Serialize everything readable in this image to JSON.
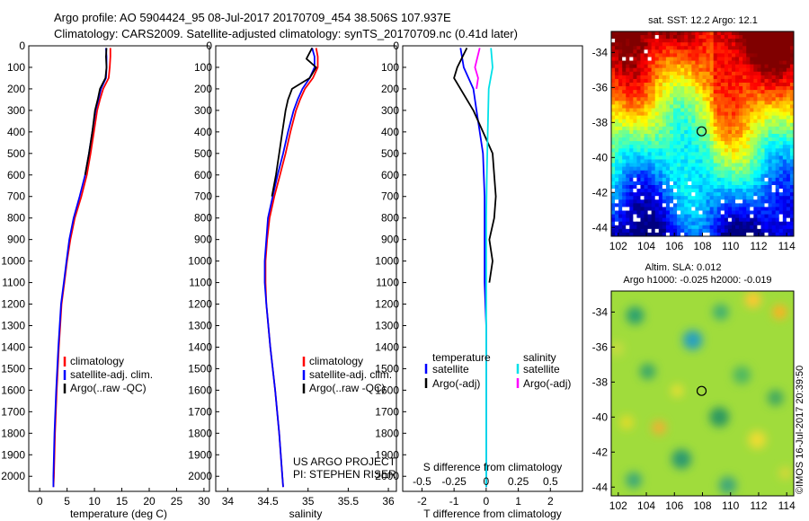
{
  "header": {
    "title_line1": "Argo profile: AO 5904424_95 08-Jul-2017 20170709_454 38.506S 107.937E",
    "title_line2": "Climatology: CARS2009. Satellite-adjusted climatology: synTS_20170709.nc (0.41d later)"
  },
  "side_label": "©IMOS 16-Jul-2017 20:39:50",
  "colors": {
    "climatology": "#ff0000",
    "satellite_adj": "#0000ff",
    "argo": "#000000",
    "sal_satellite": "#00e0e8",
    "sal_argo": "#ff00ff"
  },
  "chart_data": [
    {
      "type": "line",
      "panel": "temperature",
      "xlabel": "temperature (deg C)",
      "ylabel": "",
      "xlim": [
        -2,
        31
      ],
      "ylim": [
        2070,
        0
      ],
      "x_ticks": [
        0,
        5,
        10,
        15,
        20,
        25,
        30
      ],
      "y_ticks": [
        0,
        100,
        200,
        300,
        400,
        500,
        600,
        700,
        800,
        900,
        1000,
        1100,
        1200,
        1300,
        1400,
        1500,
        1600,
        1700,
        1800,
        1900,
        2000
      ],
      "legend": [
        "climatology",
        "satellite-adj. clim.",
        "Argo(..raw -QC)"
      ],
      "series": [
        {
          "name": "climatology",
          "color": "#ff0000",
          "x": [
            12.9,
            12.9,
            12.8,
            12.6,
            11.6,
            11.0,
            10.5,
            9.9,
            9.3,
            8.6,
            7.6,
            6.4,
            5.6,
            5.0,
            4.5,
            4.0,
            3.5,
            3.1,
            2.8,
            2.6,
            2.5
          ],
          "y": [
            10,
            50,
            100,
            150,
            200,
            250,
            300,
            400,
            500,
            600,
            700,
            800,
            900,
            1000,
            1100,
            1200,
            1400,
            1600,
            1800,
            2000,
            2050
          ]
        },
        {
          "name": "satellite-adj. clim.",
          "color": "#0000ff",
          "x": [
            12.1,
            12.2,
            12.2,
            12.1,
            11.2,
            10.7,
            10.2,
            9.6,
            9.0,
            8.3,
            7.3,
            6.2,
            5.4,
            4.9,
            4.4,
            3.9,
            3.4,
            3.0,
            2.7,
            2.5,
            2.5
          ],
          "y": [
            10,
            50,
            100,
            150,
            200,
            250,
            300,
            400,
            500,
            600,
            700,
            800,
            900,
            1000,
            1100,
            1200,
            1400,
            1600,
            1800,
            2000,
            2050
          ]
        },
        {
          "name": "Argo(..raw -QC)",
          "color": "#000000",
          "x": [
            12.2,
            12.1,
            12.2,
            12.0,
            11.0,
            10.6,
            10.1,
            9.6,
            9.0,
            8.3
          ],
          "y": [
            10,
            50,
            100,
            150,
            200,
            250,
            300,
            400,
            500,
            600
          ]
        }
      ]
    },
    {
      "type": "line",
      "panel": "salinity",
      "xlabel": "salinity",
      "ylabel": "",
      "xlim": [
        33.85,
        36.1
      ],
      "ylim": [
        2070,
        0
      ],
      "x_ticks": [
        34,
        34.5,
        35,
        35.5,
        36
      ],
      "legend": [
        "climatology",
        "satellite-adj. clim.",
        "Argo(..raw -QC)"
      ],
      "annotation": [
        "US ARGO PROJECT",
        "PI: STEPHEN RISER"
      ],
      "series": [
        {
          "name": "climatology",
          "color": "#ff0000",
          "x": [
            35.1,
            35.12,
            35.12,
            35.06,
            34.96,
            34.9,
            34.85,
            34.78,
            34.72,
            34.65,
            34.58,
            34.52,
            34.49,
            34.47,
            34.47,
            34.48,
            34.53,
            34.59,
            34.64,
            34.68,
            34.69
          ],
          "y": [
            10,
            50,
            100,
            150,
            200,
            250,
            300,
            400,
            500,
            600,
            700,
            800,
            900,
            1000,
            1100,
            1200,
            1400,
            1600,
            1800,
            2000,
            2050
          ]
        },
        {
          "name": "satellite-adj. clim.",
          "color": "#0000ff",
          "x": [
            35.05,
            35.08,
            35.08,
            35.02,
            34.93,
            34.87,
            34.82,
            34.75,
            34.69,
            34.62,
            34.56,
            34.5,
            34.48,
            34.46,
            34.46,
            34.48,
            34.53,
            34.59,
            34.64,
            34.68,
            34.69
          ],
          "y": [
            10,
            50,
            100,
            150,
            200,
            250,
            300,
            400,
            500,
            600,
            700,
            800,
            900,
            1000,
            1100,
            1200,
            1400,
            1600,
            1800,
            2000,
            2050
          ]
        },
        {
          "name": "Argo(..raw -QC)",
          "color": "#000000",
          "x": [
            35.05,
            34.98,
            35.1,
            35.02,
            34.8,
            34.75,
            34.72,
            34.68,
            34.64,
            34.6,
            34.55
          ],
          "y": [
            10,
            60,
            100,
            150,
            200,
            250,
            300,
            400,
            500,
            600,
            700
          ]
        }
      ]
    },
    {
      "type": "line",
      "panel": "difference",
      "xlabel": "T difference from climatology",
      "top_xlabel": "S difference from climatology",
      "ylabel": "",
      "xlim": [
        -2.6,
        3
      ],
      "ylim": [
        2070,
        0
      ],
      "x_ticks": [
        -2,
        -1,
        0,
        1,
        2
      ],
      "top_x_ticks": [
        "-0.5",
        "-0.25",
        "0",
        "0.25",
        "0.5"
      ],
      "legend_temperature_title": "temperature",
      "legend_salinity_title": "salinity",
      "legend_temperature": [
        "satellite",
        "Argo(-adj)"
      ],
      "legend_salinity": [
        "satellite",
        "Argo(-adj)"
      ],
      "series": [
        {
          "name": "temperature satellite",
          "color": "#0000ff",
          "x": [
            -0.8,
            -0.7,
            -0.4,
            -0.3,
            -0.2,
            -0.1,
            -0.05,
            -0.05,
            -0.05,
            0,
            0,
            0,
            0
          ],
          "y": [
            10,
            100,
            200,
            300,
            400,
            500,
            700,
            900,
            1100,
            1300,
            1500,
            1800,
            2050
          ]
        },
        {
          "name": "temperature Argo(-adj)",
          "color": "#000000",
          "x": [
            -0.6,
            -0.9,
            -1.0,
            -0.4,
            -0.1,
            0.2,
            0.3,
            0.25,
            0.1,
            0.2,
            0.1
          ],
          "y": [
            10,
            100,
            150,
            300,
            400,
            500,
            700,
            800,
            900,
            1000,
            1100
          ]
        },
        {
          "name": "salinity satellite",
          "color": "#00e0e8",
          "x": [
            0.15,
            0.2,
            0.08,
            0.05,
            0.02,
            0.0,
            0.0,
            0.0,
            0.0,
            0.0,
            0.0
          ],
          "y": [
            10,
            100,
            200,
            400,
            600,
            800,
            1000,
            1200,
            1500,
            1800,
            2050
          ]
        },
        {
          "name": "salinity Argo(-adj)",
          "color": "#ff00ff",
          "x": [
            -0.2,
            -0.35,
            -0.25,
            -0.3
          ],
          "y": [
            10,
            100,
            150,
            200
          ]
        }
      ]
    },
    {
      "type": "heatmap",
      "panel": "sst_map",
      "title": "sat. SST: 12.2  Argo: 12.1",
      "x_ticks": [
        102,
        104,
        106,
        108,
        110,
        112,
        114
      ],
      "y_ticks": [
        -34,
        -36,
        -38,
        -40,
        -42,
        -44
      ],
      "xlim": [
        101.5,
        114.5
      ],
      "ylim": [
        -44.5,
        -32.8
      ],
      "marker": {
        "lon": 107.937,
        "lat": -38.506
      }
    },
    {
      "type": "heatmap",
      "panel": "sla_map",
      "title_line1": "Altim. SLA: 0.012",
      "title_line2": "Argo h1000: -0.025 h2000: -0.019",
      "x_ticks": [
        102,
        104,
        106,
        108,
        110,
        112,
        114
      ],
      "y_ticks": [
        -34,
        -36,
        -38,
        -40,
        -42,
        -44
      ],
      "xlim": [
        101.5,
        114.5
      ],
      "ylim": [
        -44.5,
        -32.8
      ],
      "marker": {
        "lon": 107.937,
        "lat": -38.506
      }
    }
  ]
}
